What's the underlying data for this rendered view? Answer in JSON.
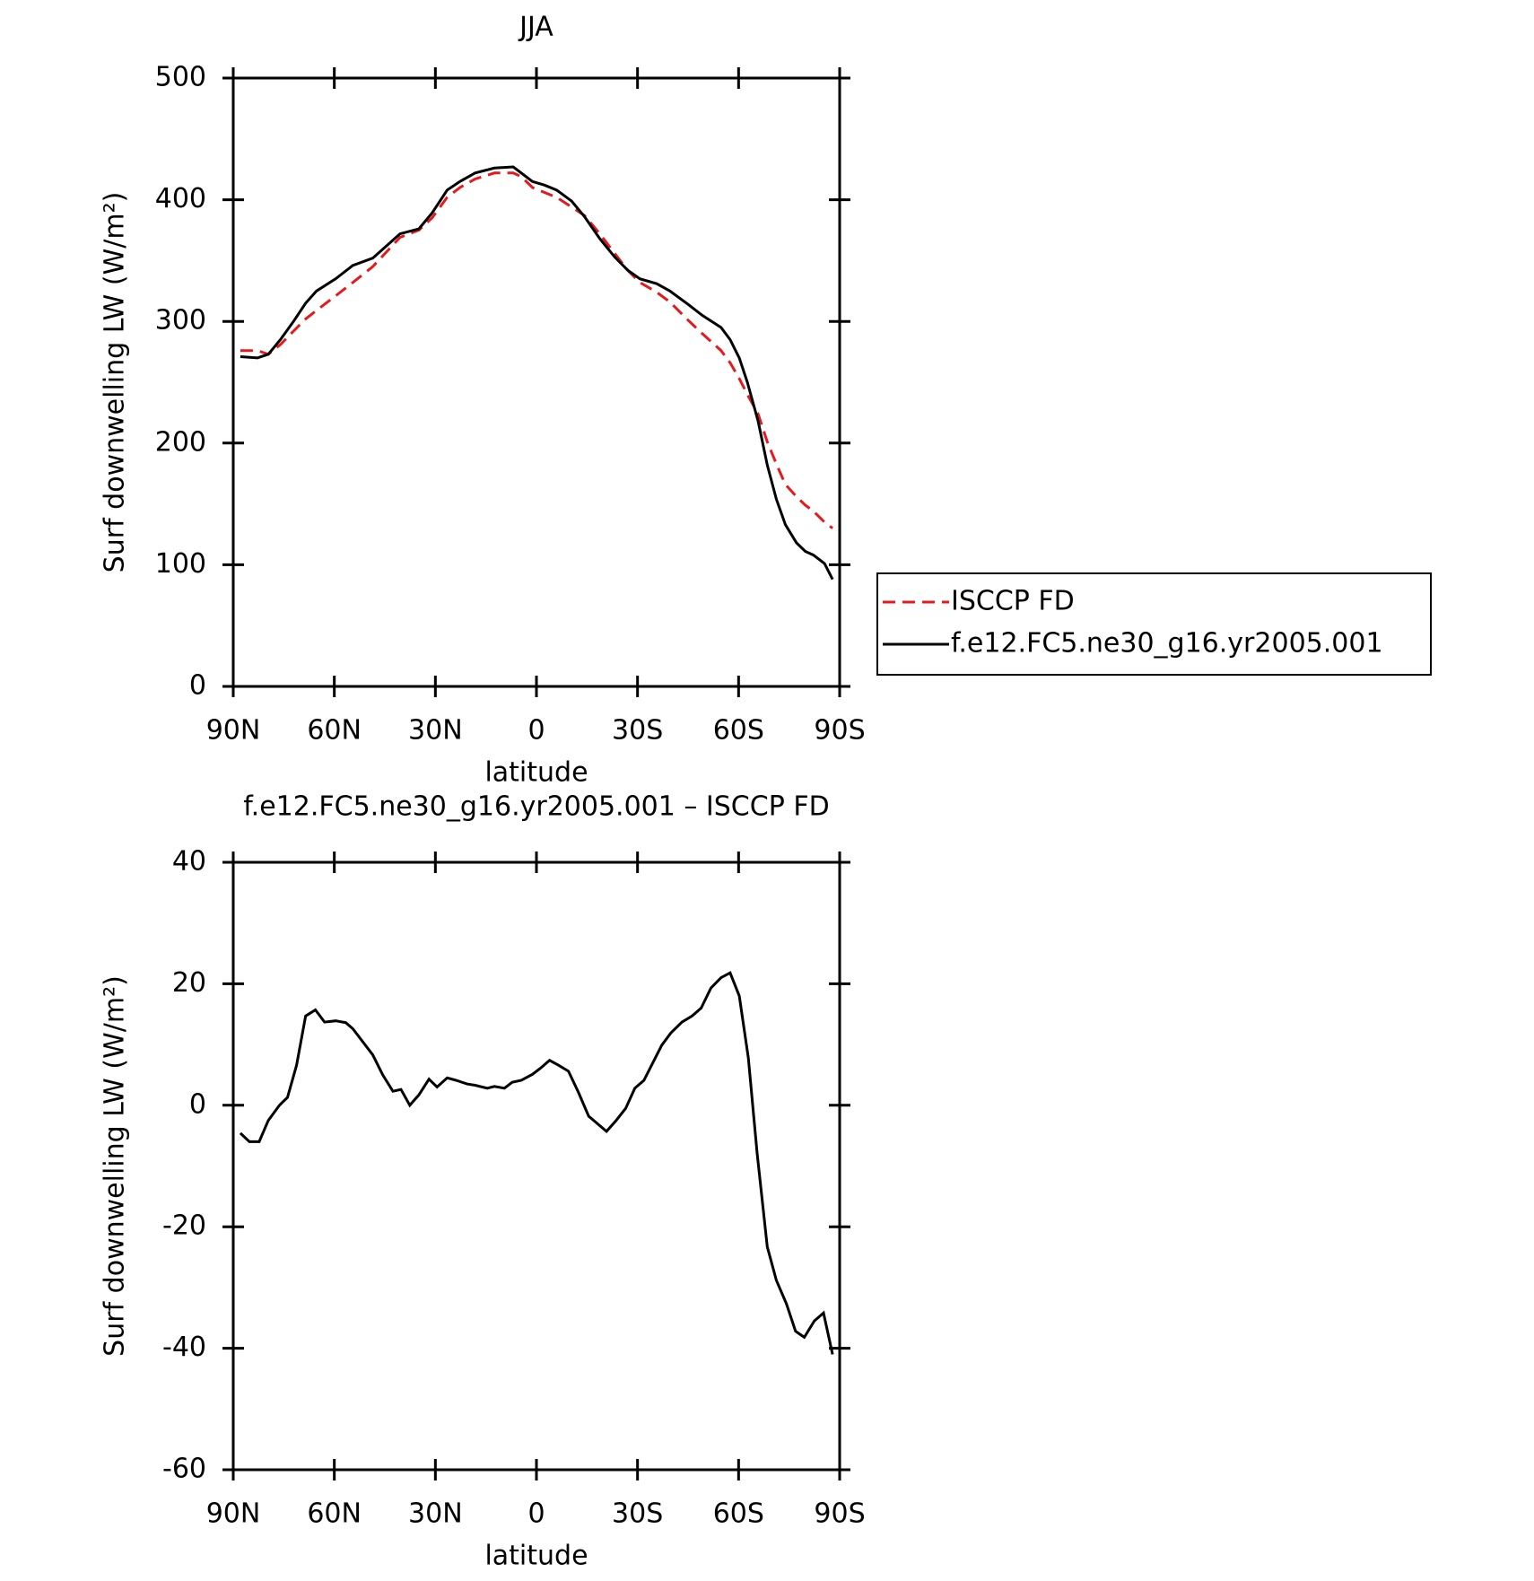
{
  "chart_data": [
    {
      "type": "line",
      "title": "JJA",
      "xlabel": "latitude",
      "ylabel": "Surf downwelling LW (W/m²)",
      "xlim": [
        90,
        -90
      ],
      "xticks": [
        {
          "value": 90,
          "label": "90N"
        },
        {
          "value": 60,
          "label": "60N"
        },
        {
          "value": 30,
          "label": "30N"
        },
        0,
        {
          "value": -30,
          "label": "30S"
        },
        {
          "value": -60,
          "label": "60S"
        },
        {
          "value": -90,
          "label": "90S"
        }
      ],
      "ylim": [
        0,
        500
      ],
      "yticks": [
        0,
        100,
        200,
        300,
        400,
        500
      ],
      "legend": "right",
      "x": [
        87.9,
        82.8,
        79.6,
        76.0,
        72.1,
        68.5,
        65.3,
        59.6,
        54.5,
        48.6,
        40.5,
        34.9,
        31.0,
        26.5,
        22.7,
        18.2,
        12.5,
        6.9,
        4.5,
        1.2,
        -2.4,
        -6.0,
        -10.4,
        -14.3,
        -18.8,
        -23.2,
        -27.1,
        -30.7,
        -35.7,
        -39.6,
        -45.0,
        -49.2,
        -54.8,
        -57.5,
        -60.2,
        -62.6,
        -65.8,
        -68.5,
        -71.2,
        -73.9,
        -77.2,
        -79.8,
        -82.2,
        -85.5,
        -87.9
      ],
      "series": [
        {
          "name": "ISCCP FD",
          "color": "#e41a1c",
          "linestyle": "dashed",
          "values": [
            276,
            276,
            273,
            281,
            292,
            302,
            309,
            321,
            332,
            345,
            369,
            375,
            385,
            402,
            410,
            417,
            422,
            422,
            419,
            410,
            406,
            402,
            394,
            387,
            372,
            356,
            342,
            332,
            324,
            316,
            301,
            290,
            276,
            266,
            253,
            240,
            224,
            201,
            183,
            166,
            156,
            149,
            144,
            135,
            130
          ]
        },
        {
          "name": "f.e12.FC5.ne30_g16.yr2005.001",
          "color": "#000000",
          "linestyle": "solid",
          "values": [
            271,
            270,
            273,
            285,
            300,
            315,
            325,
            335,
            346,
            352,
            372,
            376,
            389,
            408,
            415,
            422,
            426,
            427,
            422,
            415,
            412,
            408,
            399,
            386,
            368,
            353,
            342,
            335,
            331,
            325,
            314,
            305,
            295,
            285,
            270,
            250,
            218,
            182,
            154,
            133,
            118,
            111,
            108,
            101,
            88
          ]
        }
      ]
    },
    {
      "type": "line",
      "title": "f.e12.FC5.ne30_g16.yr2005.001 – ISCCP FD",
      "xlabel": "latitude",
      "ylabel": "Surf downwelling LW (W/m²)",
      "xlim": [
        90,
        -90
      ],
      "xticks": [
        {
          "value": 90,
          "label": "90N"
        },
        {
          "value": 60,
          "label": "60N"
        },
        {
          "value": 30,
          "label": "30N"
        },
        0,
        {
          "value": -30,
          "label": "30S"
        },
        {
          "value": -60,
          "label": "60S"
        },
        {
          "value": -90,
          "label": "90S"
        }
      ],
      "ylim": [
        -60,
        40
      ],
      "yticks": [
        -60,
        -40,
        -20,
        0,
        20,
        40
      ],
      "color": "#000000",
      "x": [
        87.9,
        85.2,
        82.3,
        79.6,
        76.3,
        73.9,
        71.2,
        68.5,
        65.6,
        62.9,
        59.6,
        56.6,
        54.5,
        48.6,
        45.6,
        42.6,
        40.2,
        37.6,
        34.9,
        31.9,
        29.5,
        26.5,
        23.8,
        20.6,
        18.2,
        14.6,
        12.5,
        9.5,
        7.2,
        4.5,
        1.2,
        -1.2,
        -3.9,
        -6.5,
        -9.5,
        -12.5,
        -15.5,
        -20.8,
        -23.5,
        -26.5,
        -29.2,
        -31.9,
        -37.2,
        -39.9,
        -43.2,
        -46.2,
        -48.9,
        -51.8,
        -54.8,
        -57.5,
        -60.2,
        -62.9,
        -65.5,
        -68.5,
        -71.2,
        -74.2,
        -76.9,
        -79.5,
        -82.5,
        -85.2,
        -87.9
      ],
      "values": [
        -4.6,
        -6,
        -6,
        -2.5,
        0,
        1.3,
        6.6,
        14.7,
        15.7,
        13.7,
        13.9,
        13.6,
        12.6,
        8.3,
        5,
        2.3,
        2.6,
        0,
        1.7,
        4.3,
        3,
        4.5,
        4.1,
        3.5,
        3.3,
        2.8,
        3.1,
        2.8,
        3.8,
        4.1,
        5.1,
        6.1,
        7.4,
        6.6,
        5.6,
        2.1,
        -1.8,
        -4.3,
        -2.6,
        -0.5,
        2.8,
        4.1,
        9.9,
        11.9,
        13.7,
        14.7,
        16,
        19.3,
        21,
        21.8,
        18,
        7.8,
        -7.9,
        -23.3,
        -28.8,
        -32.7,
        -37.2,
        -38.2,
        -35.5,
        -34.2,
        -41
      ]
    }
  ]
}
